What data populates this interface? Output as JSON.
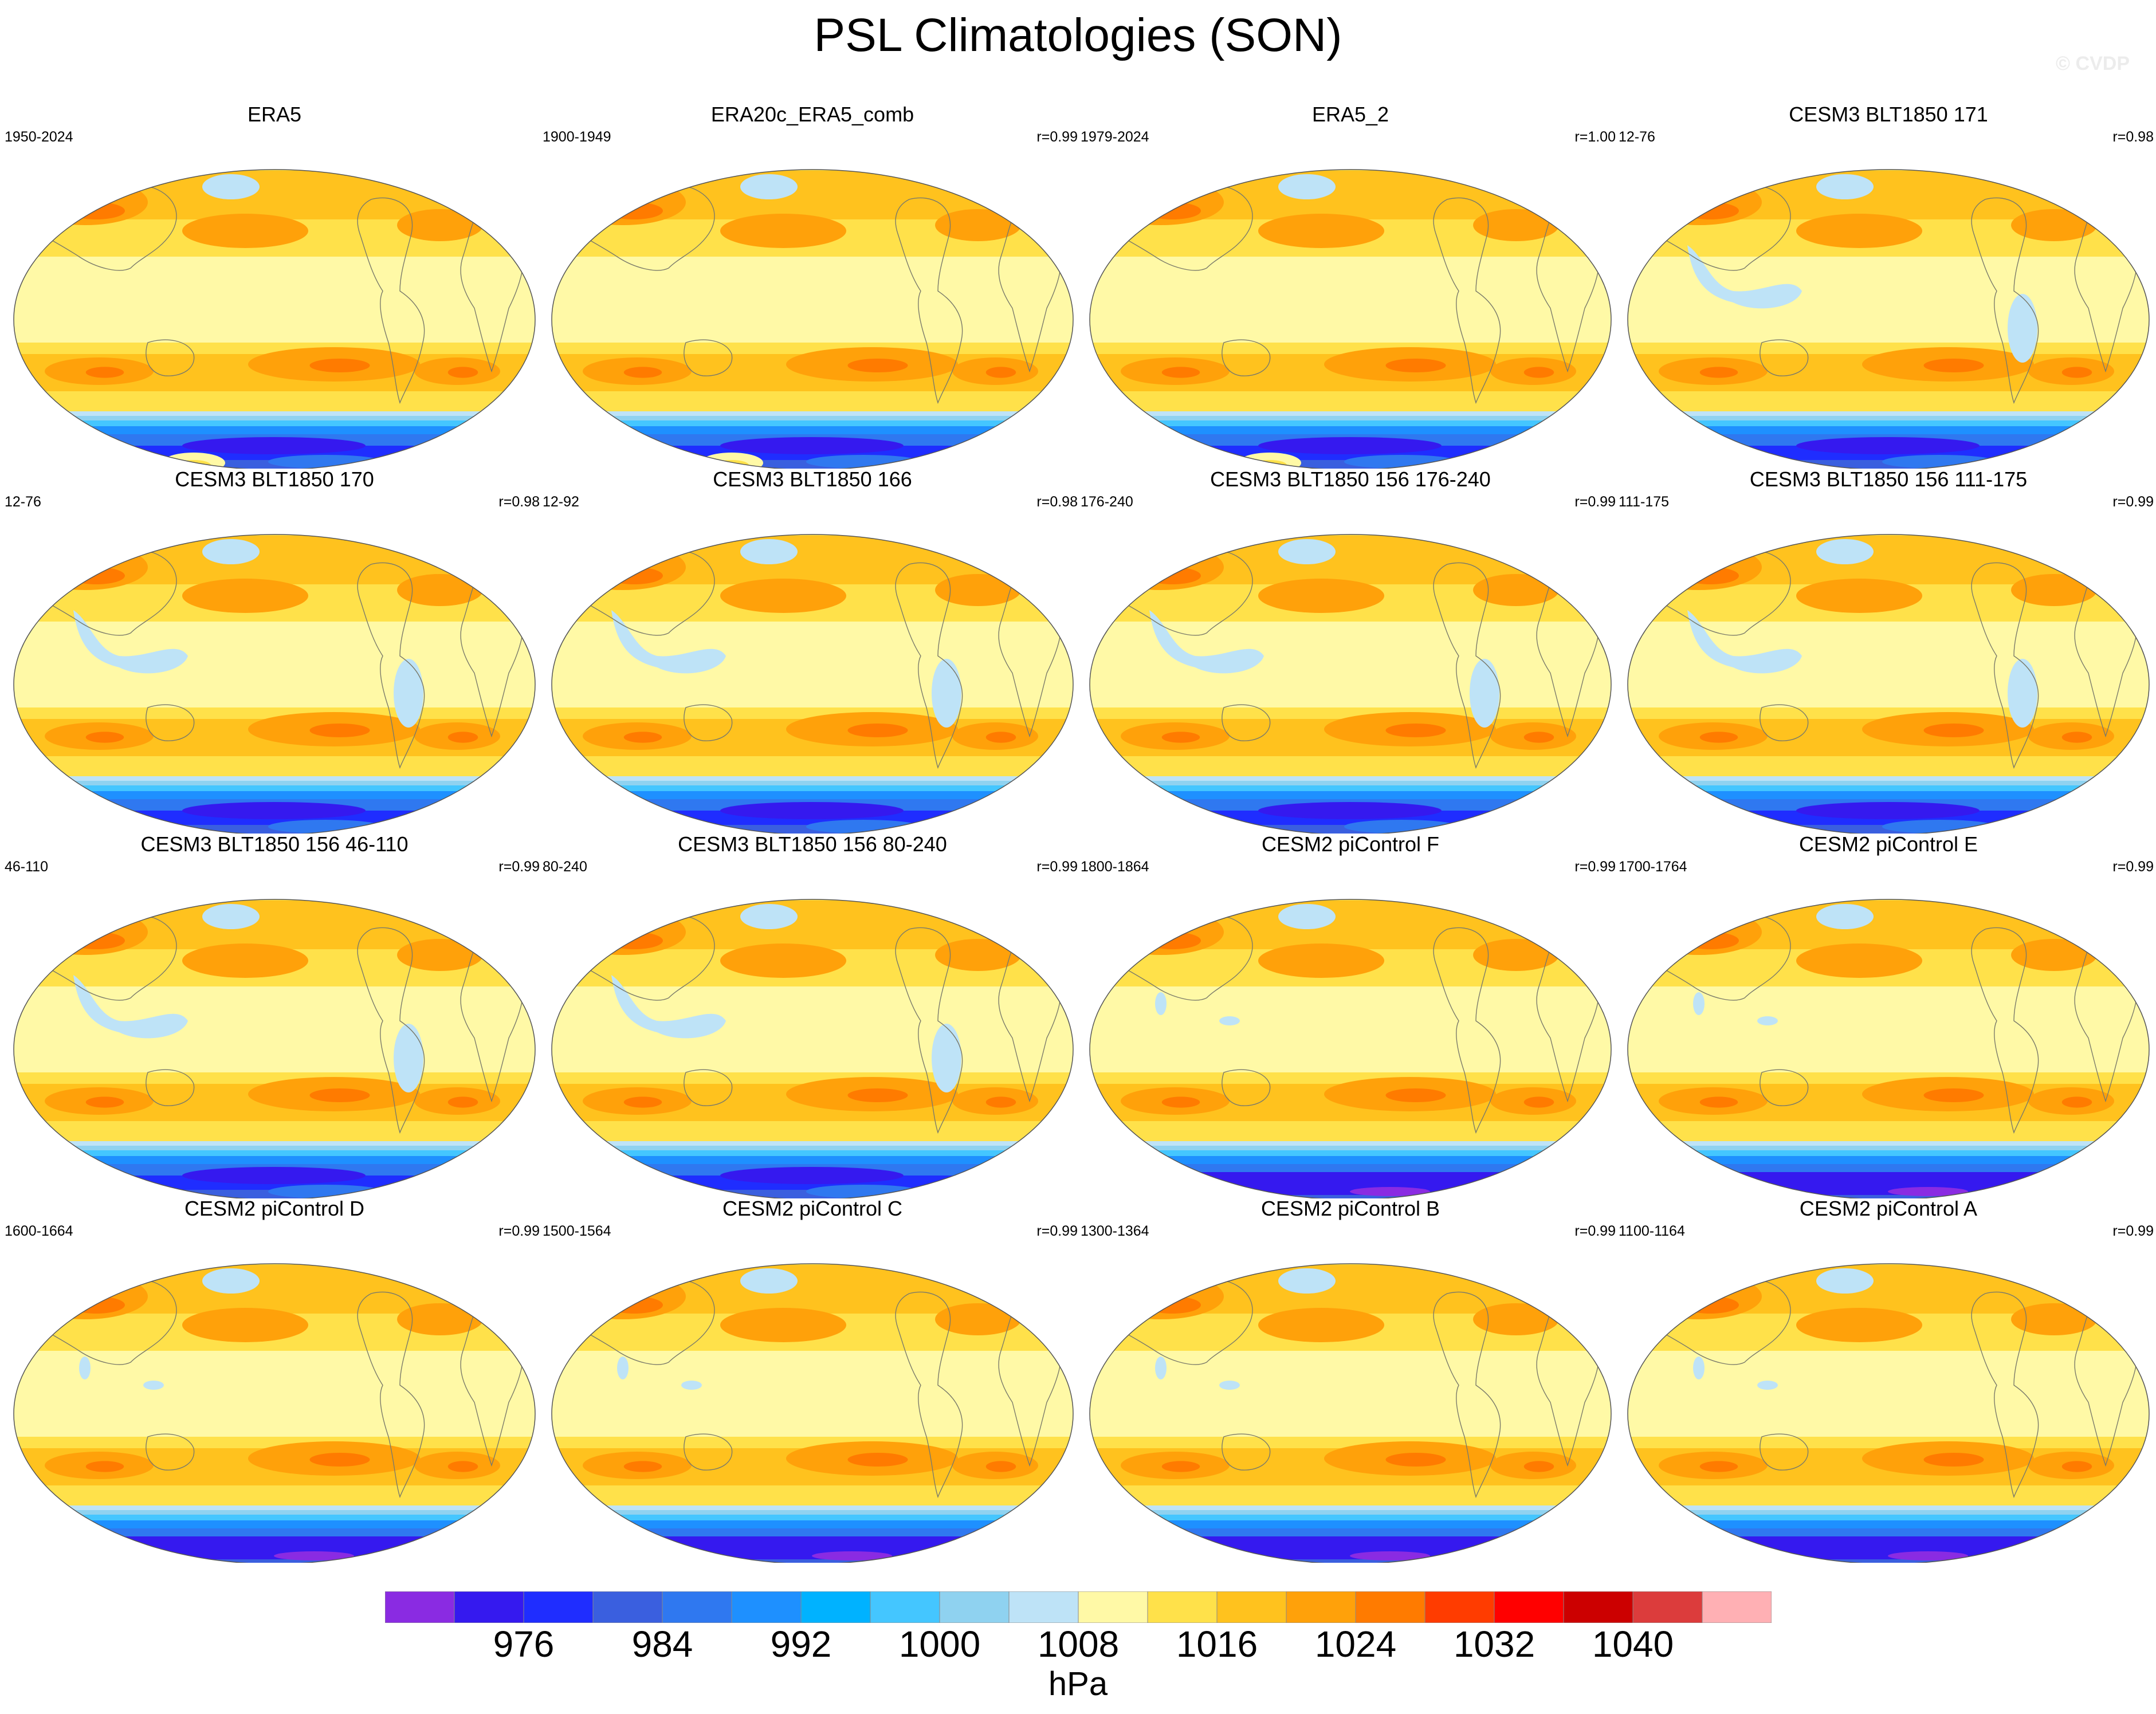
{
  "title": "PSL Climatologies (SON)",
  "watermark": "© CVDP",
  "panels": [
    {
      "title": "ERA5",
      "years": "1950-2024",
      "r": "",
      "style": "obs"
    },
    {
      "title": "ERA20c_ERA5_comb",
      "years": "1900-1949",
      "r": "r=0.99",
      "style": "obs"
    },
    {
      "title": "ERA5_2",
      "years": "1979-2024",
      "r": "r=1.00",
      "style": "obs"
    },
    {
      "title": "CESM3 BLT1850 171",
      "years": "12-76",
      "r": "r=0.98",
      "style": "cesm3"
    },
    {
      "title": "CESM3 BLT1850 170",
      "years": "12-76",
      "r": "r=0.98",
      "style": "cesm3"
    },
    {
      "title": "CESM3 BLT1850 166",
      "years": "12-92",
      "r": "r=0.98",
      "style": "cesm3"
    },
    {
      "title": "CESM3 BLT1850 156 176-240",
      "years": "176-240",
      "r": "r=0.99",
      "style": "cesm3"
    },
    {
      "title": "CESM3 BLT1850 156 111-175",
      "years": "111-175",
      "r": "r=0.99",
      "style": "cesm3"
    },
    {
      "title": "CESM3 BLT1850 156 46-110",
      "years": "46-110",
      "r": "r=0.99",
      "style": "cesm3"
    },
    {
      "title": "CESM3 BLT1850 156 80-240",
      "years": "80-240",
      "r": "r=0.99",
      "style": "cesm3"
    },
    {
      "title": "CESM2 piControl F",
      "years": "1800-1864",
      "r": "r=0.99",
      "style": "cesm2"
    },
    {
      "title": "CESM2 piControl E",
      "years": "1700-1764",
      "r": "r=0.99",
      "style": "cesm2"
    },
    {
      "title": "CESM2 piControl D",
      "years": "1600-1664",
      "r": "r=0.99",
      "style": "cesm2"
    },
    {
      "title": "CESM2 piControl C",
      "years": "1500-1564",
      "r": "r=0.99",
      "style": "cesm2"
    },
    {
      "title": "CESM2 piControl B",
      "years": "1300-1364",
      "r": "r=0.99",
      "style": "cesm2"
    },
    {
      "title": "CESM2 piControl A",
      "years": "1100-1164",
      "r": "r=0.99",
      "style": "cesm2"
    }
  ],
  "colorbar": {
    "colors": [
      "#8a2be2",
      "#3519ef",
      "#1f2dff",
      "#3a5fdf",
      "#2f78f0",
      "#1e90ff",
      "#00b2ff",
      "#44c6ff",
      "#8fd2f0",
      "#bee3f7",
      "#fff9a6",
      "#ffe14a",
      "#ffc21e",
      "#ffa10a",
      "#ff7b00",
      "#ff3c00",
      "#ff0000",
      "#cc0000",
      "#dc3c3c",
      "#ffb0b4"
    ],
    "tick_labels": [
      "976",
      "984",
      "992",
      "1000",
      "1008",
      "1016",
      "1024",
      "1032",
      "1040"
    ],
    "units": "hPa"
  }
}
